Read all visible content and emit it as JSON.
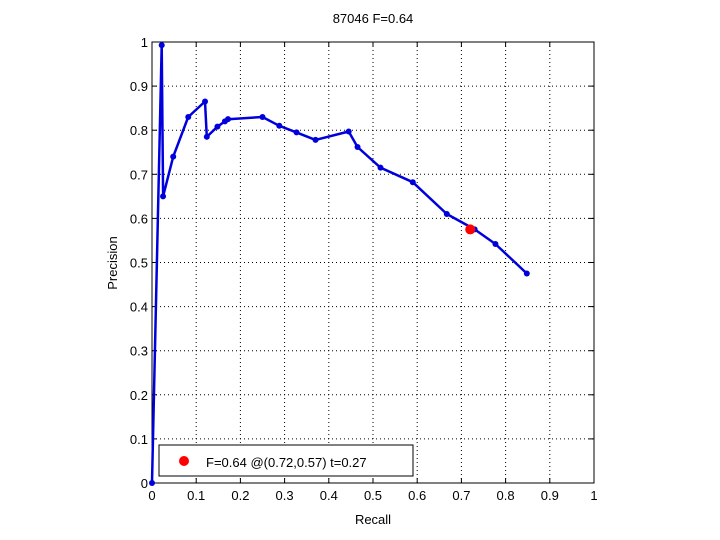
{
  "chart_data": {
    "type": "line",
    "title": "87046 F=0.64",
    "xlabel": "Recall",
    "ylabel": "Precision",
    "xlim": [
      0,
      1
    ],
    "ylim": [
      0,
      1
    ],
    "grid": true,
    "xticks": [
      0,
      0.1,
      0.2,
      0.3,
      0.4,
      0.5,
      0.6,
      0.7,
      0.8,
      0.9,
      1
    ],
    "yticks": [
      0,
      0.1,
      0.2,
      0.3,
      0.4,
      0.5,
      0.6,
      0.7,
      0.8,
      0.9,
      1
    ],
    "xtick_labels": [
      "0",
      "0.1",
      "0.2",
      "0.3",
      "0.4",
      "0.5",
      "0.6",
      "0.7",
      "0.8",
      "0.9",
      "1"
    ],
    "ytick_labels": [
      "0",
      "0.1",
      "0.2",
      "0.3",
      "0.4",
      "0.5",
      "0.6",
      "0.7",
      "0.8",
      "0.9",
      "1"
    ],
    "series": [
      {
        "color": "#0000dd",
        "marker": "dot",
        "x": [
          0.0,
          0.022,
          0.025,
          0.048,
          0.082,
          0.12,
          0.124,
          0.148,
          0.165,
          0.172,
          0.25,
          0.288,
          0.327,
          0.37,
          0.445,
          0.465,
          0.517,
          0.59,
          0.667,
          0.73,
          0.777,
          0.848
        ],
        "y": [
          0.0,
          0.993,
          0.65,
          0.74,
          0.83,
          0.865,
          0.785,
          0.808,
          0.82,
          0.825,
          0.83,
          0.81,
          0.795,
          0.778,
          0.797,
          0.762,
          0.715,
          0.682,
          0.61,
          0.575,
          0.542,
          0.475
        ]
      }
    ],
    "best_point": {
      "x": 0.72,
      "y": 0.575,
      "color": "#ff0000"
    },
    "legend": {
      "position": "bottom-left",
      "label": "F=0.64 @(0.72,0.57) t=0.27"
    }
  }
}
